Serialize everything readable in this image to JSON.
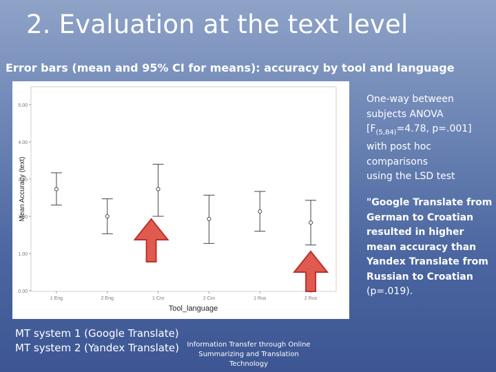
{
  "slide": {
    "title": "2. Evaluation at the text level",
    "subtitle": "Error bars (mean and 95% CI for means): accuracy by tool and language",
    "anova": {
      "line1": "One-way between",
      "line2": "subjects ANOVA",
      "f_prefix": "[F",
      "f_sub": "(5,84)",
      "f_rest": "=4.78, p=.001]",
      "line4": "with post hoc",
      "line5": "comparisons",
      "line6": "using the LSD test"
    },
    "finding": {
      "text": "\"Google Translate from German to Croatian resulted in higher mean accuracy than Yandex Translate from Russian to Croatian",
      "p_text": "(p=.019)."
    },
    "legend": {
      "line1": "MT system 1 (Google Translate)",
      "line2": "MT system 2 (Yandex Translate)"
    },
    "footer": "Information Transfer through Online Summarizing and Translation Technology"
  },
  "chart_data": {
    "type": "errorbar",
    "xlabel": "Tool_language",
    "ylabel": "Mean Accuracy (text)",
    "ylim": [
      0,
      5
    ],
    "yticks": [
      "0.00",
      "1.00",
      "2.00",
      "3.00",
      "4.00",
      "5.00"
    ],
    "categories": [
      "1 Eng",
      "2 Eng",
      "1 Cro",
      "2 Cro",
      "1 Rus",
      "2 Rus"
    ],
    "mean": [
      2.73,
      2.0,
      2.73,
      1.93,
      2.13,
      1.83
    ],
    "ci_low": [
      2.3,
      1.53,
      2.0,
      1.27,
      1.6,
      1.23
    ],
    "ci_high": [
      3.17,
      2.47,
      3.4,
      2.57,
      2.67,
      2.43
    ],
    "highlight_arrows": [
      "1 Cro",
      "2 Rus"
    ],
    "colors": {
      "arrow_fill": "#e05a50",
      "arrow_stroke": "#b8332b",
      "bars": "#444444"
    }
  }
}
